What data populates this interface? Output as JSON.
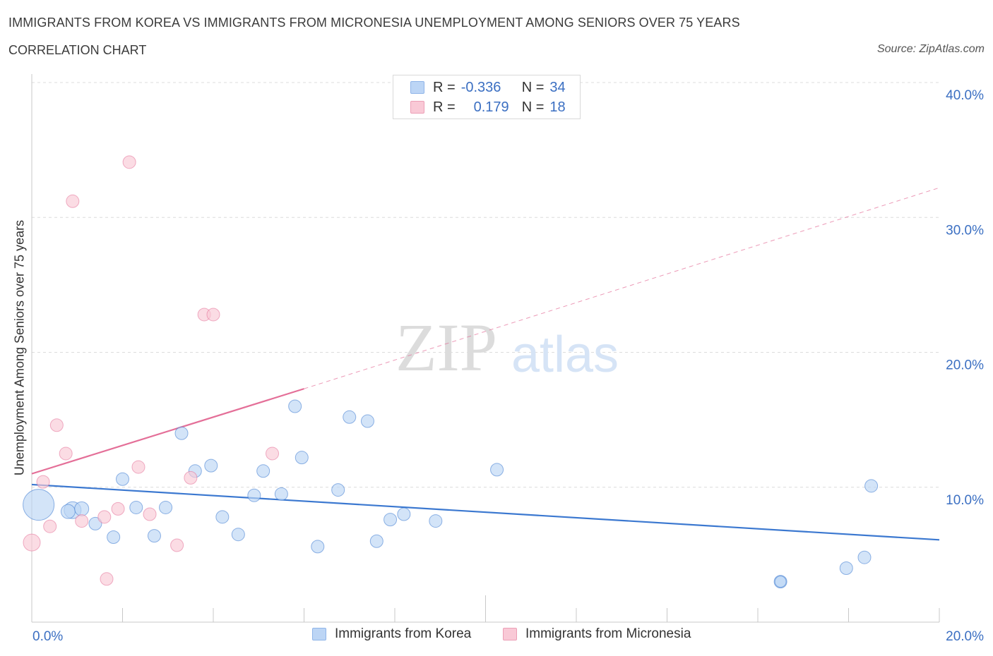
{
  "header": {
    "title": "IMMIGRANTS FROM KOREA VS IMMIGRANTS FROM MICRONESIA UNEMPLOYMENT AMONG SENIORS OVER 75 YEARS",
    "subtitle": "CORRELATION CHART",
    "source": "Source: ZipAtlas.com"
  },
  "watermark": {
    "zip": "ZIP",
    "atlas": "atlas"
  },
  "legend": {
    "rows": [
      {
        "r_label": "R =",
        "r_value": "-0.336",
        "n_label": "N =",
        "n_value": "34",
        "fill": "#bcd5f5",
        "stroke": "#8fb4e8"
      },
      {
        "r_label": "R =",
        "r_value": "0.179",
        "n_label": "N =",
        "n_value": "18",
        "fill": "#f9c9d6",
        "stroke": "#ec9fb6"
      }
    ]
  },
  "bottom_legend": {
    "korea": "Immigrants from Korea",
    "micronesia": "Immigrants from Micronesia"
  },
  "chart_data": {
    "type": "scatter",
    "ylabel": "Unemployment Among Seniors over 75 years",
    "xlim": [
      0,
      20
    ],
    "ylim": [
      0,
      40
    ],
    "x_tick_labels": [
      "0.0%",
      "20.0%"
    ],
    "y_tick_labels": [
      "10.0%",
      "20.0%",
      "30.0%",
      "40.0%"
    ],
    "y_ticks": [
      10,
      20,
      30,
      40
    ],
    "grid": true,
    "series": [
      {
        "name": "Immigrants from Korea",
        "color": "#3b78d0",
        "fill": "#bcd5f5",
        "trend": {
          "x": [
            0,
            20
          ],
          "y": [
            10.2,
            6.1
          ],
          "dashed_x": null
        },
        "points": [
          {
            "x": 0.15,
            "y": 8.7,
            "s": 22
          },
          {
            "x": 0.9,
            "y": 8.3,
            "s": 12
          },
          {
            "x": 0.8,
            "y": 8.2,
            "s": 10
          },
          {
            "x": 1.1,
            "y": 8.4,
            "s": 10
          },
          {
            "x": 1.4,
            "y": 7.3,
            "s": 9
          },
          {
            "x": 1.8,
            "y": 6.3,
            "s": 9
          },
          {
            "x": 2.0,
            "y": 10.6,
            "s": 9
          },
          {
            "x": 2.3,
            "y": 8.5,
            "s": 9
          },
          {
            "x": 2.7,
            "y": 6.4,
            "s": 9
          },
          {
            "x": 2.95,
            "y": 8.5,
            "s": 9
          },
          {
            "x": 3.3,
            "y": 14.0,
            "s": 9
          },
          {
            "x": 3.6,
            "y": 11.2,
            "s": 9
          },
          {
            "x": 3.95,
            "y": 11.6,
            "s": 9
          },
          {
            "x": 4.2,
            "y": 7.8,
            "s": 9
          },
          {
            "x": 4.55,
            "y": 6.5,
            "s": 9
          },
          {
            "x": 4.9,
            "y": 9.4,
            "s": 9
          },
          {
            "x": 5.1,
            "y": 11.2,
            "s": 9
          },
          {
            "x": 5.5,
            "y": 9.5,
            "s": 9
          },
          {
            "x": 5.8,
            "y": 16.0,
            "s": 9
          },
          {
            "x": 5.95,
            "y": 12.2,
            "s": 9
          },
          {
            "x": 6.3,
            "y": 5.6,
            "s": 9
          },
          {
            "x": 6.75,
            "y": 9.8,
            "s": 9
          },
          {
            "x": 7.0,
            "y": 15.2,
            "s": 9
          },
          {
            "x": 7.4,
            "y": 14.9,
            "s": 9
          },
          {
            "x": 7.6,
            "y": 6.0,
            "s": 9
          },
          {
            "x": 7.9,
            "y": 7.6,
            "s": 9
          },
          {
            "x": 8.2,
            "y": 8.0,
            "s": 9
          },
          {
            "x": 8.9,
            "y": 7.5,
            "s": 9
          },
          {
            "x": 10.25,
            "y": 11.3,
            "s": 9
          },
          {
            "x": 16.5,
            "y": 3.0,
            "s": 9
          },
          {
            "x": 16.5,
            "y": 3.0,
            "s": 8
          },
          {
            "x": 17.95,
            "y": 4.0,
            "s": 9
          },
          {
            "x": 18.35,
            "y": 4.8,
            "s": 9
          },
          {
            "x": 18.5,
            "y": 10.1,
            "s": 9
          }
        ]
      },
      {
        "name": "Immigrants from Micronesia",
        "color": "#e46f98",
        "fill": "#f9c9d6",
        "trend": {
          "x": [
            0,
            6.0
          ],
          "y": [
            11.0,
            17.3
          ],
          "dashed_x": [
            6.0,
            20
          ],
          "dashed_y": [
            17.3,
            32.2
          ]
        },
        "points": [
          {
            "x": 0.0,
            "y": 5.9,
            "s": 12
          },
          {
            "x": 0.25,
            "y": 10.4,
            "s": 9
          },
          {
            "x": 0.4,
            "y": 7.1,
            "s": 9
          },
          {
            "x": 0.55,
            "y": 14.6,
            "s": 9
          },
          {
            "x": 0.75,
            "y": 12.5,
            "s": 9
          },
          {
            "x": 0.9,
            "y": 31.2,
            "s": 9
          },
          {
            "x": 1.1,
            "y": 7.5,
            "s": 9
          },
          {
            "x": 1.6,
            "y": 7.8,
            "s": 9
          },
          {
            "x": 1.65,
            "y": 3.2,
            "s": 9
          },
          {
            "x": 1.9,
            "y": 8.4,
            "s": 9
          },
          {
            "x": 2.15,
            "y": 34.1,
            "s": 9
          },
          {
            "x": 2.35,
            "y": 11.5,
            "s": 9
          },
          {
            "x": 2.6,
            "y": 8.0,
            "s": 9
          },
          {
            "x": 3.2,
            "y": 5.7,
            "s": 9
          },
          {
            "x": 3.5,
            "y": 10.7,
            "s": 9
          },
          {
            "x": 3.8,
            "y": 22.8,
            "s": 9
          },
          {
            "x": 4.0,
            "y": 22.8,
            "s": 9
          },
          {
            "x": 5.3,
            "y": 12.5,
            "s": 9
          }
        ]
      }
    ]
  }
}
